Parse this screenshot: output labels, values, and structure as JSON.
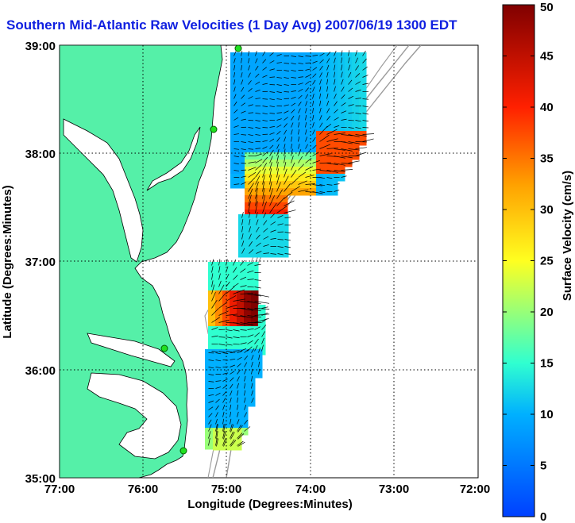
{
  "title": "Southern Mid-Atlantic Raw Velocities (1 Day Avg) 2007/06/19 1300 EDT",
  "map": {
    "x_axis_label": "Longitude (Degrees:Minutes)",
    "y_axis_label": "Latitude (Degrees:Minutes)",
    "x_ticks": [
      "77:00",
      "76:00",
      "75:00",
      "74:00",
      "73:00",
      "72:00"
    ],
    "y_ticks": [
      "39:00",
      "38:00",
      "37:00",
      "36:00",
      "35:00"
    ],
    "land_color": "#55f0a8",
    "coast_color": "#000000",
    "grid": "dotted"
  },
  "colorbar": {
    "label": "Surface Velocity (cm/s)",
    "ticks": [
      "50",
      "45",
      "40",
      "35",
      "30",
      "25",
      "20",
      "15",
      "10",
      "5",
      "0"
    ],
    "min": 0,
    "max": 50
  }
}
